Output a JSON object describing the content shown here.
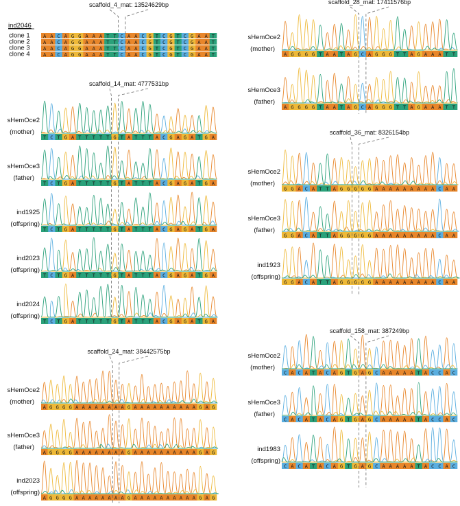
{
  "colors": {
    "A": "#e8862a",
    "C": "#5aaee0",
    "G": "#eeb938",
    "T": "#2aa17a",
    "guide": "#666666"
  },
  "panels": [
    {
      "id": "p4",
      "type": "clones",
      "title": "scaffold_4_mat: 13524629bp",
      "header": "ind2046",
      "rows": [
        {
          "label": "clone 1",
          "seq": "AACAGGAAATTCAACGTCGTCGAAT"
        },
        {
          "label": "clone 2",
          "seq": "AACAGGAAATTCAACGTCGTCGAAT"
        },
        {
          "label": "clone 3",
          "seq": "AACAGGAAATTCAACGTCGTCGAAT"
        },
        {
          "label": "clone 4",
          "seq": "AACAGGAAATTCAACGTCGTCGAAT"
        }
      ],
      "mark": 11
    },
    {
      "id": "p14",
      "type": "trace",
      "title": "scaffold_14_mat: 4777531bp",
      "mark": 10,
      "rows": [
        {
          "label": "sHemOce2",
          "sub": "(mother)",
          "seq": "TCTGATTTTTGTATTTACGAGATGA"
        },
        {
          "label": "sHemOce3",
          "sub": "(father)",
          "seq": "TCTGATTTTTGTATTTACGAGATGA"
        },
        {
          "label": "ind1925",
          "sub": "(offspring)",
          "seq": "TCTGATTTTTGTATTTACGAGATGA"
        },
        {
          "label": "ind2023",
          "sub": "(offspring)",
          "seq": "TCTGATTTTTGTATTTACGAGATGA"
        },
        {
          "label": "ind2024",
          "sub": "(offspring)",
          "seq": "TCTGATTTTTGTATTTACGAGATGA"
        }
      ]
    },
    {
      "id": "p24",
      "type": "trace",
      "title": "scaffold_24_mat: 38442575bp",
      "mark": 11,
      "rows": [
        {
          "label": "sHemOce2",
          "sub": "(mother)",
          "seq": "AGGGGAAAAAAAAGAAAAAAAAAAGAG"
        },
        {
          "label": "sHemOce3",
          "sub": "(father)",
          "seq": "AGGGGAAAAAAAAGAAAAAAAAAAGAG"
        },
        {
          "label": "ind2023",
          "sub": "(offspring)",
          "seq": "AGGGGAAAAAAAAGAAAAAAAAAAGAG"
        }
      ]
    },
    {
      "id": "p28",
      "type": "trace",
      "title": "scaffold_28_mat: 17411576bp",
      "mark": 11,
      "rows": [
        {
          "label": "sHemOce2",
          "sub": "(mother)",
          "seq": "AGGGGTAATAGCAGGGTTAGAAATT"
        },
        {
          "label": "sHemOce3",
          "sub": "(father)",
          "seq": "AGGGGTAATAGCAGGGTTAGAAATT"
        }
      ]
    },
    {
      "id": "p36",
      "type": "trace",
      "title": "scaffold_36_mat: 8326154bp",
      "mark": 10,
      "rows": [
        {
          "label": "sHemOce2",
          "sub": "(mother)",
          "seq": "GGACATTAGGGGGAAAAAAAAACAA"
        },
        {
          "label": "sHemOce3",
          "sub": "(father)",
          "seq": "GGACATTAGGGGGAAAAAAAAACAA"
        },
        {
          "label": "ind1923",
          "sub": "(offspring)",
          "seq": "GGACATTAGGGGGAAAAAAAAACAA"
        }
      ]
    },
    {
      "id": "p158",
      "type": "trace",
      "title": "scaffold_158_mat: 387249bp",
      "mark": 11,
      "rows": [
        {
          "label": "sHemOce2",
          "sub": "(mother)",
          "seq": "CACATACAGTGAGCAAAAATACCAC"
        },
        {
          "label": "sHemOce3",
          "sub": "(father)",
          "seq": "CACATACAGTGAGCAAAAATACCAC"
        },
        {
          "label": "ind1983",
          "sub": "(offspring)",
          "seq": "CACATACAGTGAGCAAAAATACCAC"
        }
      ]
    }
  ]
}
